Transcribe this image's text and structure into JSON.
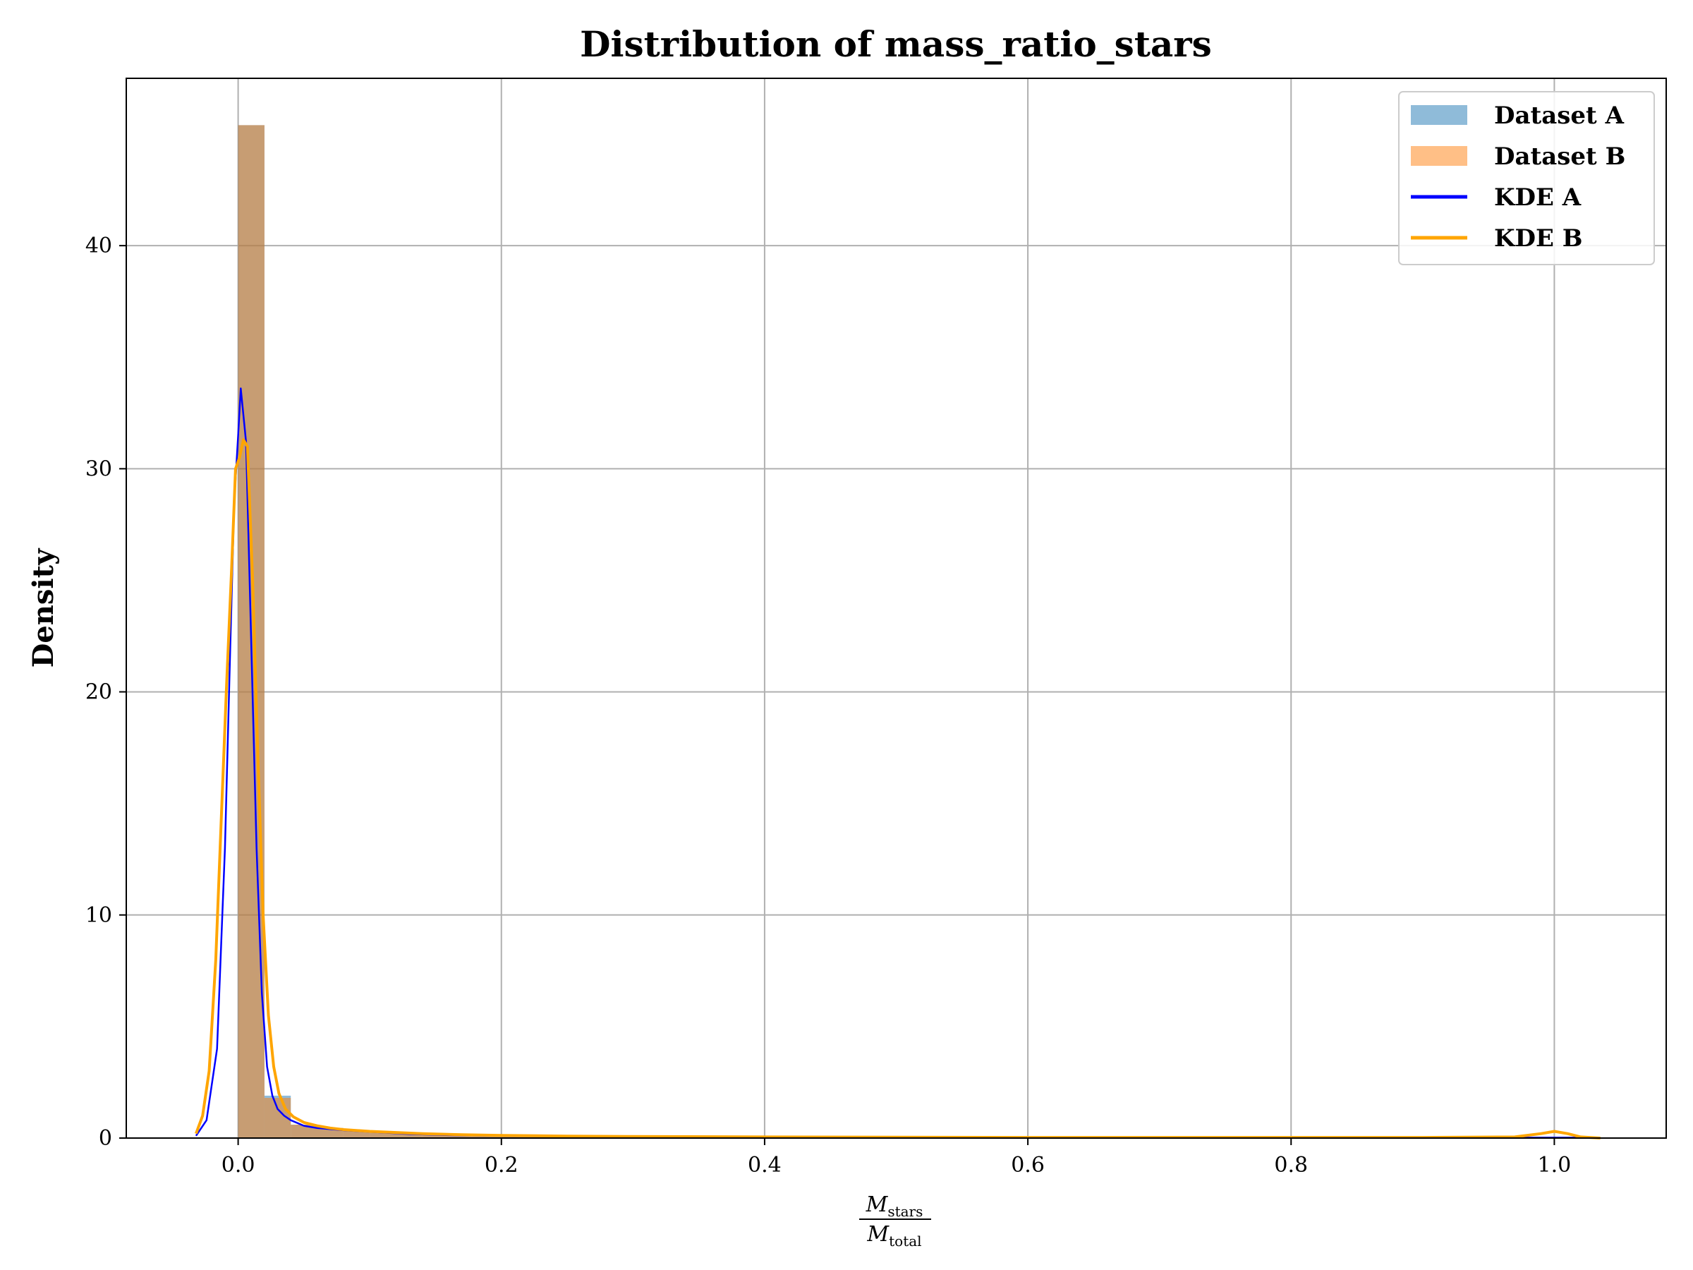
{
  "chart_data": {
    "type": "histogram",
    "title": "Distribution of mass_ratio_stars",
    "ylabel": "Density",
    "xlabel": {
      "numerator": "M",
      "numerator_sub": "stars",
      "denominator": "M",
      "denominator_sub": "total"
    },
    "xlim": [
      -0.085,
      1.085
    ],
    "ylim": [
      0,
      47.5
    ],
    "x_ticks": [
      0.0,
      0.2,
      0.4,
      0.6,
      0.8,
      1.0
    ],
    "x_tick_labels": [
      "0.0",
      "0.2",
      "0.4",
      "0.6",
      "0.8",
      "1.0"
    ],
    "y_ticks": [
      0,
      10,
      20,
      30,
      40
    ],
    "y_tick_labels": [
      "0",
      "10",
      "20",
      "30",
      "40"
    ],
    "grid": true,
    "legend_position": "top-right",
    "histograms": [
      {
        "name": "Dataset A",
        "color": "#1f77b4",
        "opacity": 0.5,
        "bin_edges": [
          0.0,
          0.02,
          0.04,
          0.06,
          0.08,
          0.1,
          0.12,
          0.14,
          0.16,
          0.18,
          0.2,
          0.22,
          0.24,
          0.26,
          0.28,
          0.3
        ],
        "values": [
          45.4,
          1.9,
          0.6,
          0.45,
          0.35,
          0.3,
          0.2,
          0.18,
          0.12,
          0.1,
          0.08,
          0.06,
          0.05,
          0.04,
          0.03
        ]
      },
      {
        "name": "Dataset B",
        "color": "#ff7f0e",
        "opacity": 0.5,
        "bin_edges": [
          0.0,
          0.02,
          0.04,
          0.06,
          0.08,
          0.1,
          0.12,
          0.14,
          0.16,
          0.18,
          0.2,
          0.22,
          0.24,
          0.26,
          0.28,
          0.3
        ],
        "values": [
          45.4,
          1.8,
          0.6,
          0.45,
          0.35,
          0.3,
          0.2,
          0.18,
          0.12,
          0.1,
          0.08,
          0.06,
          0.05,
          0.04,
          0.03
        ]
      }
    ],
    "kde": [
      {
        "name": "KDE A",
        "color": "#0000ff",
        "line_width": 2.5,
        "x": [
          -0.032,
          -0.024,
          -0.016,
          -0.01,
          -0.006,
          -0.003,
          0.0,
          0.002,
          0.006,
          0.01,
          0.014,
          0.018,
          0.022,
          0.026,
          0.03,
          0.035,
          0.04,
          0.05,
          0.06,
          0.08,
          0.1,
          0.13,
          0.16,
          0.2,
          0.25,
          0.3,
          0.4,
          0.5,
          0.6,
          0.7,
          0.8,
          0.9,
          1.0,
          1.02
        ],
        "y": [
          0.1,
          0.8,
          4.0,
          13.0,
          22.0,
          28.5,
          31.5,
          33.6,
          31.2,
          22.0,
          13.0,
          6.5,
          3.2,
          1.9,
          1.3,
          1.0,
          0.8,
          0.55,
          0.45,
          0.35,
          0.28,
          0.18,
          0.13,
          0.1,
          0.08,
          0.06,
          0.04,
          0.03,
          0.02,
          0.02,
          0.02,
          0.02,
          0.02,
          0.02
        ]
      },
      {
        "name": "KDE B",
        "color": "#ffa500",
        "line_width": 4,
        "x": [
          -0.032,
          -0.027,
          -0.022,
          -0.017,
          -0.013,
          -0.009,
          -0.005,
          -0.002,
          0.001,
          0.004,
          0.007,
          0.011,
          0.015,
          0.019,
          0.023,
          0.027,
          0.031,
          0.036,
          0.042,
          0.05,
          0.06,
          0.07,
          0.08,
          0.1,
          0.12,
          0.14,
          0.17,
          0.2,
          0.25,
          0.3,
          0.4,
          0.5,
          0.6,
          0.7,
          0.8,
          0.9,
          0.97,
          0.99,
          1.0,
          1.01,
          1.02,
          1.035
        ],
        "y": [
          0.2,
          1.0,
          3.0,
          8.0,
          14.0,
          20.0,
          25.5,
          30.0,
          30.5,
          31.3,
          31.0,
          25.0,
          17.0,
          10.0,
          5.5,
          3.2,
          2.0,
          1.3,
          0.95,
          0.7,
          0.55,
          0.45,
          0.38,
          0.3,
          0.25,
          0.2,
          0.15,
          0.12,
          0.09,
          0.07,
          0.05,
          0.04,
          0.03,
          0.03,
          0.03,
          0.03,
          0.05,
          0.2,
          0.3,
          0.2,
          0.05,
          0.0
        ]
      }
    ]
  }
}
